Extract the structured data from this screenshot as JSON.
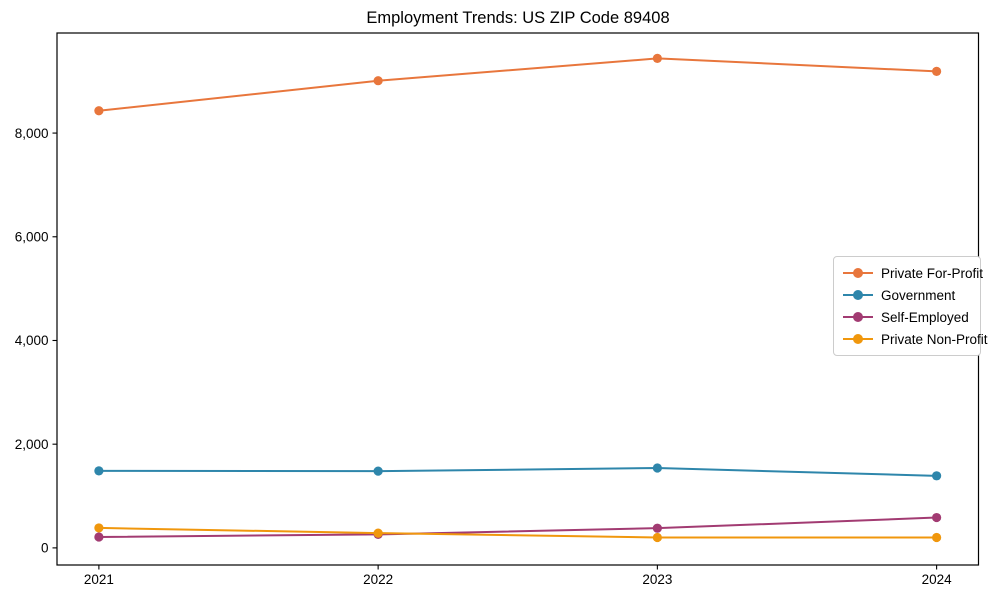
{
  "chart_data": {
    "type": "line",
    "title": "Employment Trends: US ZIP Code 89408",
    "x": [
      2021,
      2022,
      2023,
      2024
    ],
    "x_tick_labels": [
      "2021",
      "2022",
      "2023",
      "2024"
    ],
    "series": [
      {
        "name": "Private For-Profit",
        "color": "#e8763c",
        "values": [
          8430,
          9010,
          9440,
          9190
        ]
      },
      {
        "name": "Government",
        "color": "#2e86ab",
        "values": [
          1485,
          1480,
          1540,
          1390
        ]
      },
      {
        "name": "Self-Employed",
        "color": "#a23b72",
        "values": [
          210,
          260,
          380,
          585
        ]
      },
      {
        "name": "Private Non-Profit",
        "color": "#f0970d",
        "values": [
          385,
          285,
          200,
          200
        ]
      }
    ],
    "xlabel": "",
    "ylabel": "",
    "xlim": [
      2020.85,
      2024.15
    ],
    "ylim": [
      -330,
      9930
    ],
    "yticks": [
      0,
      2000,
      4000,
      6000,
      8000
    ],
    "ytick_labels": [
      "0",
      "2,000",
      "4,000",
      "6,000",
      "8,000"
    ],
    "grid": false,
    "marker": "circle",
    "legend": {
      "position": "center-right",
      "bordered": true
    }
  }
}
